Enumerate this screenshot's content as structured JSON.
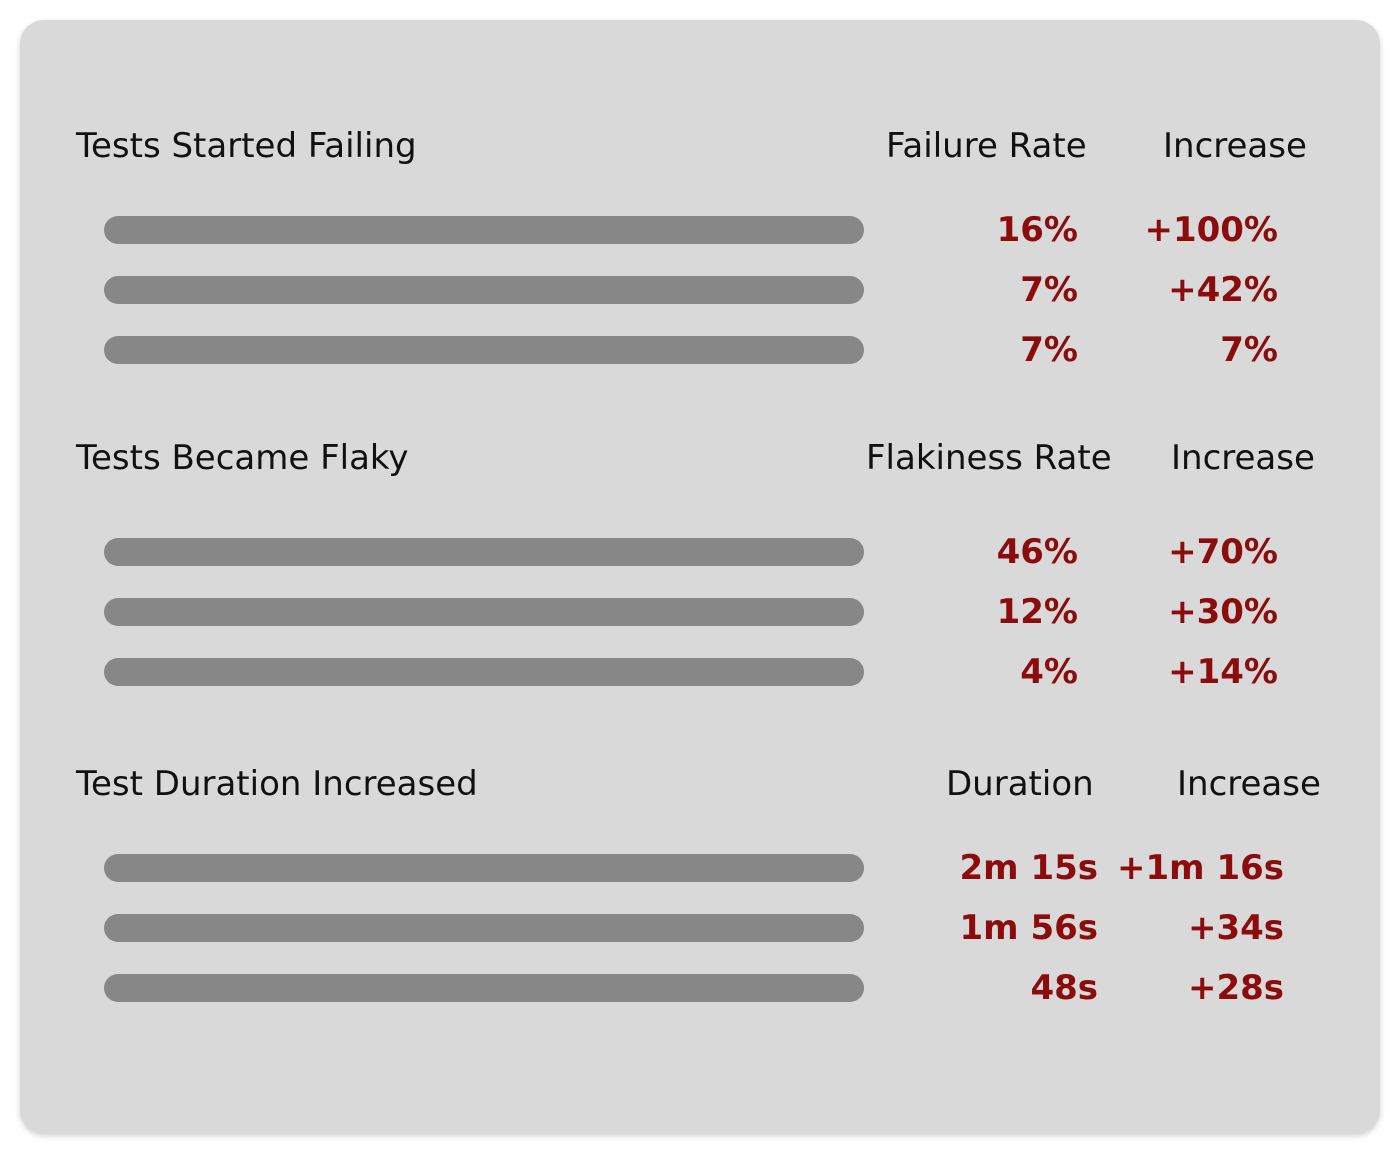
{
  "sections": [
    {
      "title": "Tests Started Failing",
      "metric_header": "Failure Rate",
      "increase_header": "Increase",
      "rows": [
        {
          "metric": "16%",
          "increase": "+100%"
        },
        {
          "metric": "7%",
          "increase": "+42%"
        },
        {
          "metric": "7%",
          "increase": "7%"
        }
      ]
    },
    {
      "title": "Tests Became Flaky",
      "metric_header": "Flakiness Rate",
      "increase_header": "Increase",
      "rows": [
        {
          "metric": "46%",
          "increase": "+70%"
        },
        {
          "metric": "12%",
          "increase": "+30%"
        },
        {
          "metric": "4%",
          "increase": "+14%"
        }
      ]
    },
    {
      "title": "Test Duration Increased",
      "metric_header": "Duration",
      "increase_header": "Increase",
      "rows": [
        {
          "metric": "2m 15s",
          "increase": "+1m 16s"
        },
        {
          "metric": "1m 56s",
          "increase": "+34s"
        },
        {
          "metric": "48s",
          "increase": "+28s"
        }
      ]
    }
  ],
  "colors": {
    "panel": "#d9d9d9",
    "placeholder_bar": "#878787",
    "value_text": "#8b0c0c",
    "heading_text": "#111111"
  }
}
